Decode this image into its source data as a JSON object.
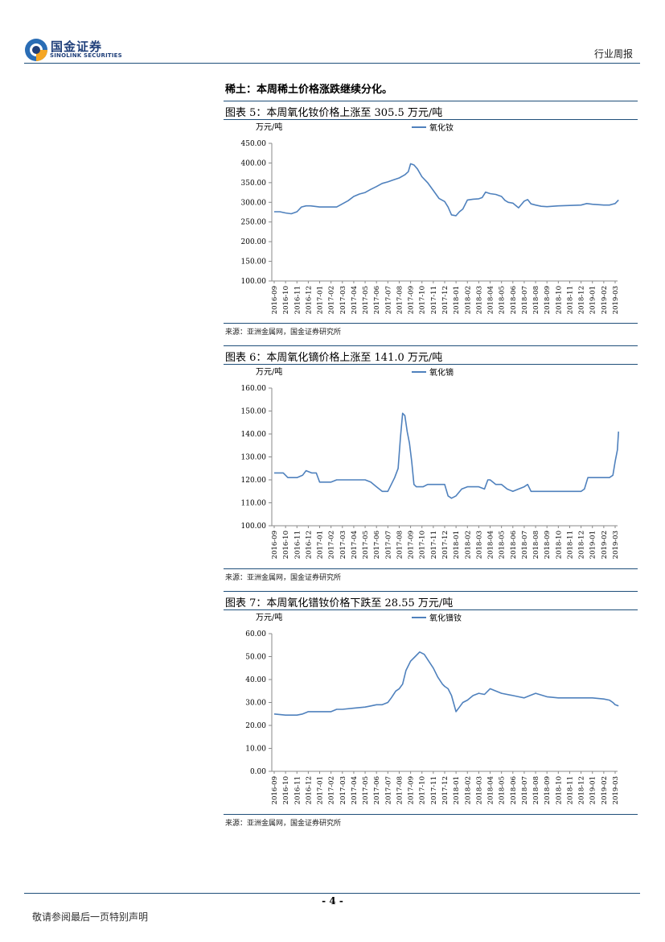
{
  "header": {
    "logo_cn": "国金证券",
    "logo_en": "SINOLINK SECURITIES",
    "report_type": "行业周报"
  },
  "section_heading": "稀土：本周稀土价格涨跌继续分化。",
  "colors": {
    "line": "#4f81bd",
    "rule": "#1f4f7a"
  },
  "footer": {
    "page_number": "- 4 -",
    "disclaimer": "敬请参阅最后一页特别声明"
  },
  "figures": [
    {
      "title": "图表 5：本周氧化钕价格上涨至 305.5 万元/吨",
      "source": "来源：亚洲金属网，国金证券研究所"
    },
    {
      "title": "图表 6：本周氧化镝价格上涨至 141.0 万元/吨",
      "source": "来源：亚洲金属网，国金证券研究所"
    },
    {
      "title": "图表 7：本周氧化镨钕价格下跌至 28.55 万元/吨",
      "source": "来源：亚洲金属网，国金证券研究所"
    }
  ],
  "chart_data": [
    {
      "type": "line",
      "ylabel": "万元/吨",
      "legend": "top-center",
      "ylim": [
        100,
        450
      ],
      "yticks": [
        "100.00",
        "150.00",
        "200.00",
        "250.00",
        "300.00",
        "350.00",
        "400.00",
        "450.00"
      ],
      "categories": [
        "2016-09",
        "2016-10",
        "2016-11",
        "2016-12",
        "2017-01",
        "2017-02",
        "2017-03",
        "2017-04",
        "2017-05",
        "2017-06",
        "2017-07",
        "2017-08",
        "2017-09",
        "2017-10",
        "2017-11",
        "2017-12",
        "2018-01",
        "2018-02",
        "2018-03",
        "2018-04",
        "2018-05",
        "2018-06",
        "2018-07",
        "2018-08",
        "2018-09",
        "2018-10",
        "2018-11",
        "2018-12",
        "2019-01",
        "2019-02",
        "2019-03"
      ],
      "series": [
        {
          "name": "氧化钕",
          "x": [
            0,
            0.5,
            1,
            1.5,
            2,
            2.4,
            2.8,
            3.2,
            4,
            4.5,
            5,
            5.5,
            6,
            6.5,
            7,
            7.5,
            8,
            8.5,
            9,
            9.5,
            10,
            10.5,
            11,
            11.5,
            11.8,
            12,
            12.3,
            12.6,
            13,
            13.5,
            14,
            14.5,
            15,
            15.3,
            15.6,
            16,
            16.3,
            16.6,
            17,
            17.5,
            18,
            18.3,
            18.6,
            19,
            19.5,
            20,
            20.3,
            20.6,
            21,
            21.5,
            22,
            22.3,
            22.6,
            23,
            23.5,
            24,
            25,
            26,
            27,
            27.5,
            28,
            29,
            29.5,
            30,
            30.3
          ],
          "values": [
            276,
            276,
            273,
            271,
            276,
            288,
            291,
            291,
            288,
            288,
            288,
            288,
            296,
            304,
            315,
            321,
            325,
            333,
            340,
            348,
            352,
            357,
            362,
            370,
            378,
            398,
            395,
            385,
            365,
            350,
            330,
            310,
            302,
            288,
            268,
            266,
            276,
            283,
            306,
            308,
            309,
            312,
            326,
            322,
            320,
            315,
            305,
            300,
            298,
            286,
            303,
            307,
            296,
            293,
            290,
            289,
            291,
            292,
            293,
            297,
            295,
            293,
            293,
            297,
            306
          ]
        }
      ]
    },
    {
      "type": "line",
      "ylabel": "万元/吨",
      "legend": "top-center",
      "ylim": [
        100,
        160
      ],
      "yticks": [
        "100.00",
        "110.00",
        "120.00",
        "130.00",
        "140.00",
        "150.00",
        "160.00"
      ],
      "categories": [
        "2016-09",
        "2016-10",
        "2016-11",
        "2016-12",
        "2017-01",
        "2017-02",
        "2017-03",
        "2017-04",
        "2017-05",
        "2017-06",
        "2017-07",
        "2017-08",
        "2017-09",
        "2017-10",
        "2017-11",
        "2017-12",
        "2018-01",
        "2018-02",
        "2018-03",
        "2018-04",
        "2018-05",
        "2018-06",
        "2018-07",
        "2018-08",
        "2018-09",
        "2018-10",
        "2018-11",
        "2018-12",
        "2019-01",
        "2019-02",
        "2019-03"
      ],
      "series": [
        {
          "name": "氧化镝",
          "x": [
            0,
            0.8,
            1.2,
            2,
            2.5,
            2.8,
            3.3,
            3.7,
            4,
            4.5,
            5,
            5.5,
            6,
            7,
            8,
            8.5,
            9,
            9.5,
            10,
            10.3,
            10.6,
            10.9,
            11.1,
            11.3,
            11.5,
            11.7,
            11.9,
            12.1,
            12.3,
            12.5,
            12.7,
            12.9,
            13.1,
            13.5,
            14,
            15,
            15.3,
            15.6,
            16,
            16.5,
            17,
            17.5,
            18,
            18.5,
            18.8,
            19,
            19.5,
            20,
            20.5,
            21,
            21.5,
            22,
            22.3,
            22.6,
            23,
            24,
            25,
            26,
            27,
            27.3,
            27.6,
            28,
            28.5,
            29,
            29.5,
            29.8,
            30,
            30.2,
            30.3
          ],
          "values": [
            123,
            123,
            121,
            121,
            122,
            124,
            123,
            123,
            119,
            119,
            119,
            120,
            120,
            120,
            120,
            119,
            117,
            115,
            115,
            118,
            121,
            125,
            138,
            149,
            148,
            141,
            136,
            128,
            118,
            117,
            117,
            117,
            117,
            118,
            118,
            118,
            113,
            112,
            113,
            116,
            117,
            117,
            117,
            116,
            120,
            120,
            118,
            118,
            116,
            115,
            116,
            117,
            118,
            115,
            115,
            115,
            115,
            115,
            115,
            116,
            121,
            121,
            121,
            121,
            121,
            122,
            128,
            133,
            141
          ]
        }
      ]
    },
    {
      "type": "line",
      "ylabel": "万元/吨",
      "legend": "top-center",
      "ylim": [
        0,
        60
      ],
      "yticks": [
        "0.00",
        "10.00",
        "20.00",
        "30.00",
        "40.00",
        "50.00",
        "60.00"
      ],
      "categories": [
        "2016-09",
        "2016-10",
        "2016-11",
        "2016-12",
        "2017-01",
        "2017-02",
        "2017-03",
        "2017-04",
        "2017-05",
        "2017-06",
        "2017-07",
        "2017-08",
        "2017-09",
        "2017-10",
        "2017-11",
        "2017-12",
        "2018-01",
        "2018-02",
        "2018-03",
        "2018-04",
        "2018-05",
        "2018-06",
        "2018-07",
        "2018-08",
        "2018-09",
        "2018-10",
        "2018-11",
        "2018-12",
        "2019-01",
        "2019-02",
        "2019-03"
      ],
      "series": [
        {
          "name": "氧化镨钕",
          "x": [
            0,
            1,
            2,
            2.5,
            3,
            4,
            5,
            5.5,
            6,
            7,
            8,
            8.5,
            9,
            9.5,
            10,
            10.3,
            10.7,
            11,
            11.3,
            11.6,
            12,
            12.4,
            12.8,
            13.2,
            13.6,
            14,
            14.4,
            14.8,
            15,
            15.3,
            15.6,
            16,
            16.3,
            16.6,
            17,
            17.5,
            18,
            18.5,
            19,
            19.5,
            20,
            21,
            21.5,
            22,
            22.5,
            23,
            24,
            25,
            26,
            27,
            28,
            29,
            29.5,
            29.8,
            30,
            30.3
          ],
          "values": [
            25,
            24.5,
            24.5,
            25,
            26,
            26,
            26,
            27,
            27,
            27.5,
            28,
            28.5,
            29,
            29,
            30,
            32,
            35,
            36,
            38,
            44,
            48,
            50,
            52,
            51,
            48,
            45,
            41,
            38,
            37,
            36,
            33,
            26,
            28,
            30,
            31,
            33,
            34,
            33.5,
            36,
            35,
            34,
            33,
            32.5,
            32,
            33,
            34,
            32.5,
            32,
            32,
            32,
            32,
            31.5,
            31,
            30,
            29,
            28.5
          ]
        }
      ]
    }
  ]
}
